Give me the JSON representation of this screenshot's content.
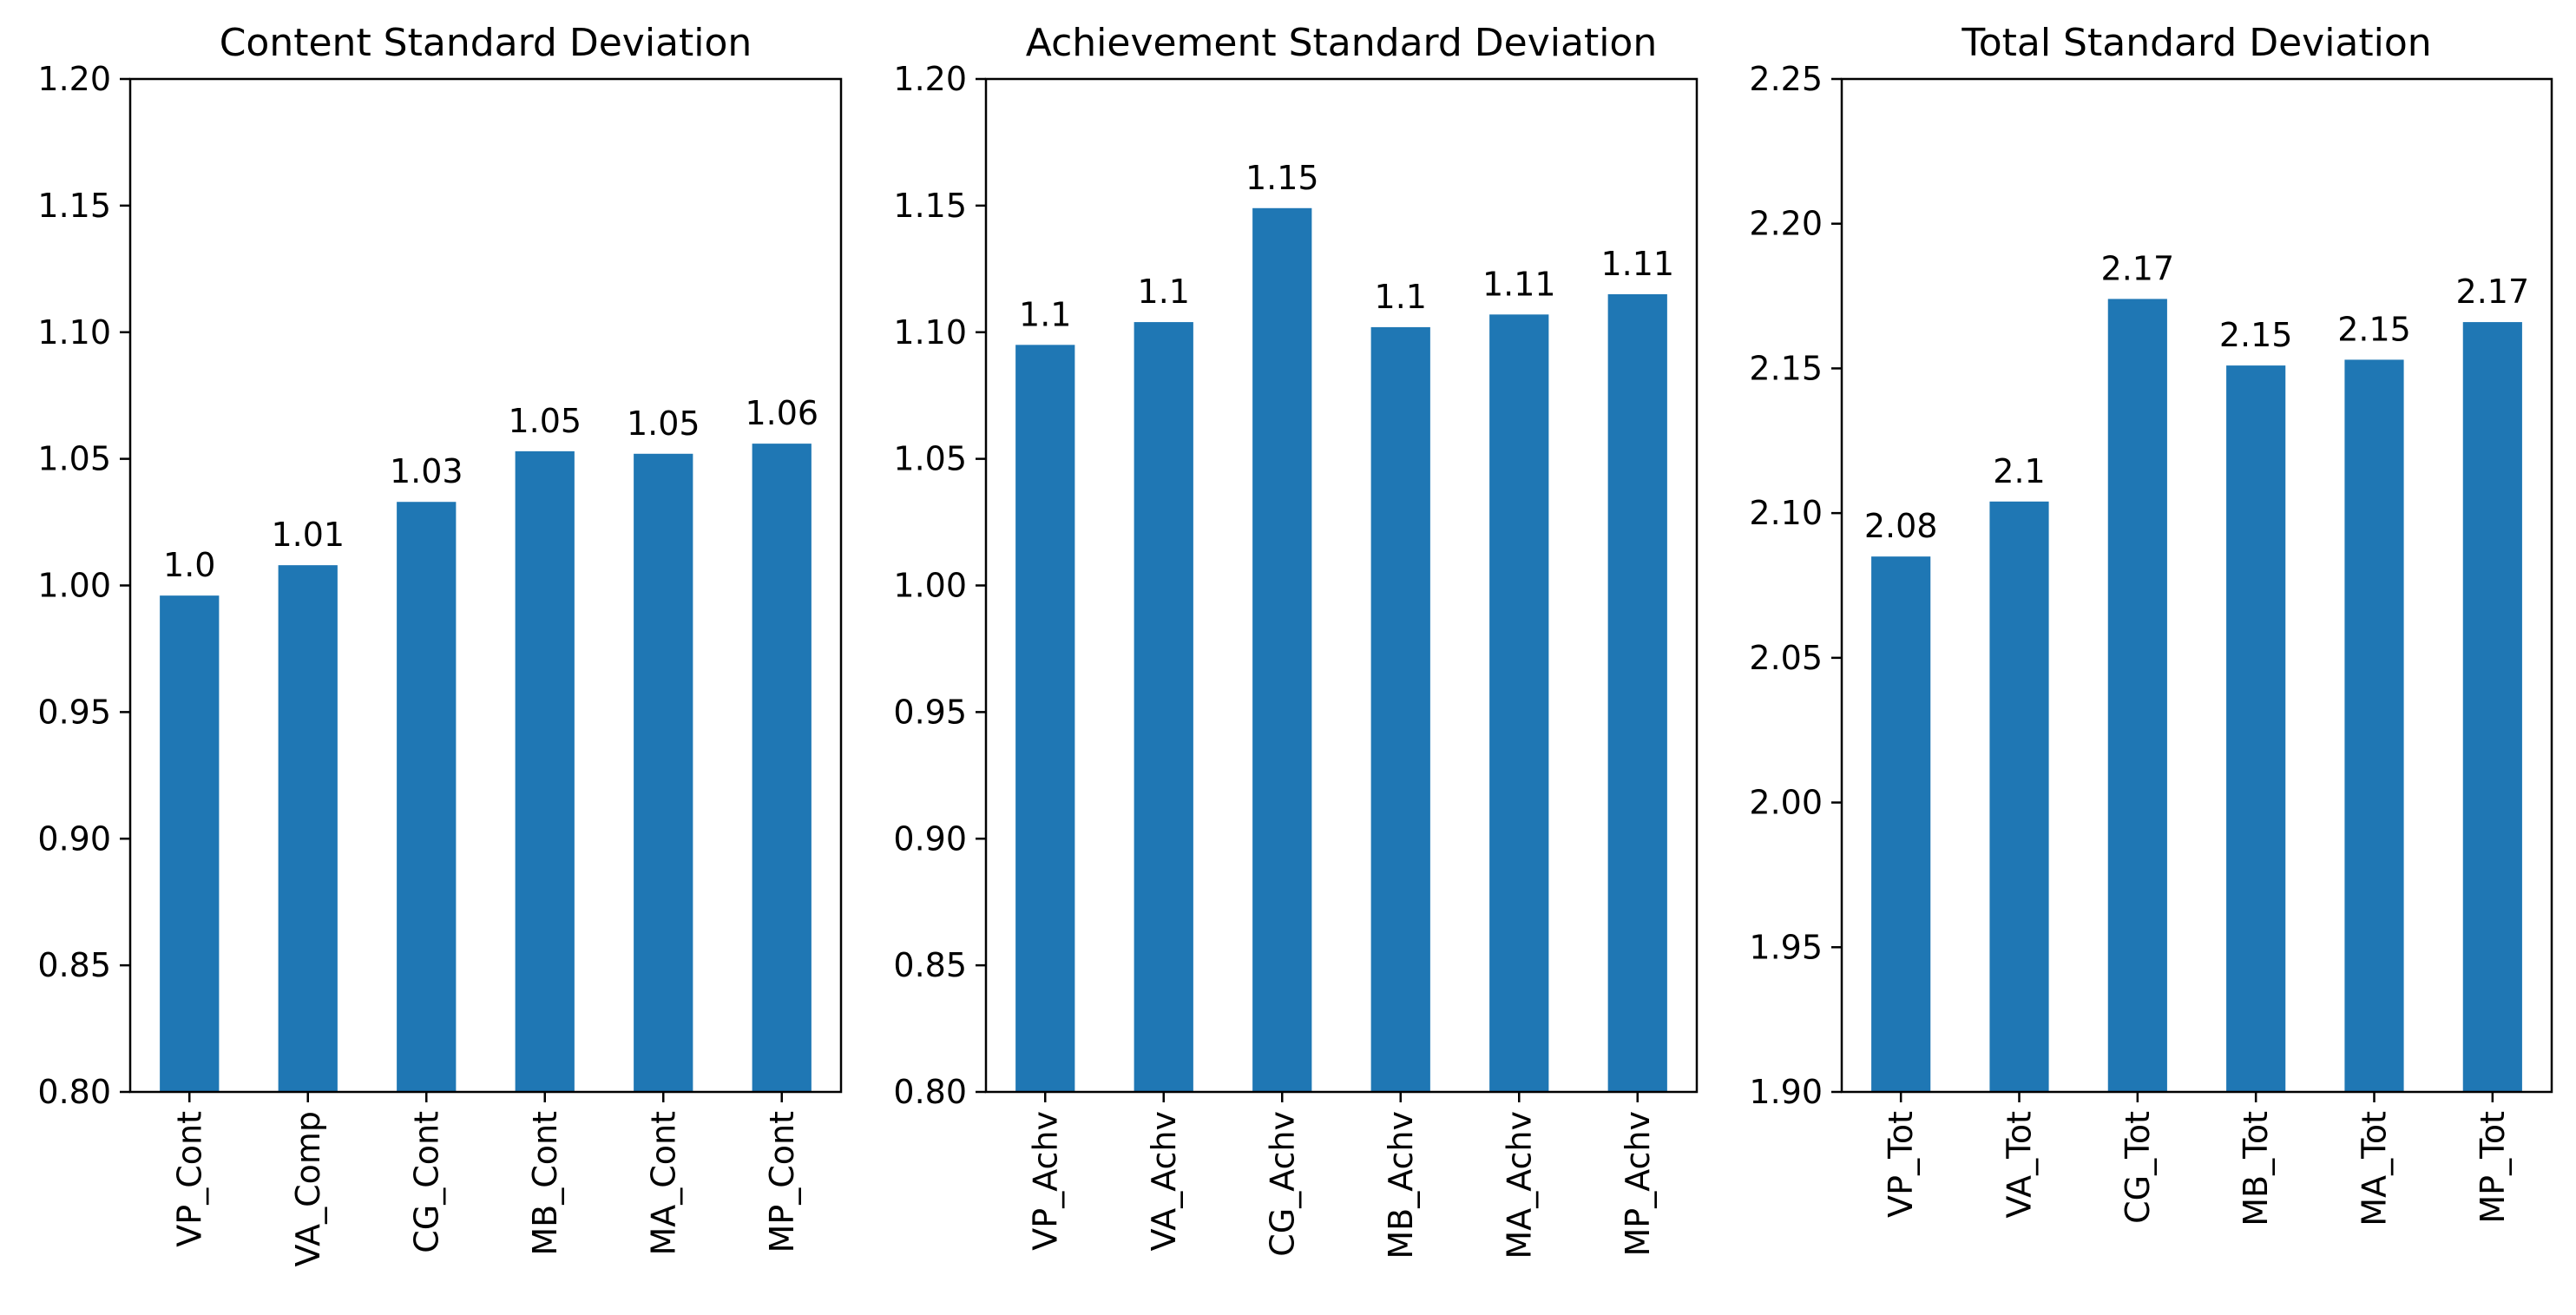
{
  "chart_data": [
    {
      "type": "bar",
      "title": "Content Standard Deviation",
      "categories": [
        "VP_Cont",
        "VA_Comp",
        "CG_Cont",
        "MB_Cont",
        "MA_Cont",
        "MP_Cont"
      ],
      "values": [
        0.996,
        1.008,
        1.033,
        1.053,
        1.052,
        1.056
      ],
      "data_labels": [
        "1.0",
        "1.01",
        "1.03",
        "1.05",
        "1.05",
        "1.06"
      ],
      "ylim": [
        0.8,
        1.2
      ],
      "yticks": [
        "0.80",
        "0.85",
        "0.90",
        "0.95",
        "1.00",
        "1.05",
        "1.10",
        "1.15",
        "1.20"
      ],
      "grid": false,
      "color": "#1f77b4"
    },
    {
      "type": "bar",
      "title": "Achievement Standard Deviation",
      "categories": [
        "VP_Achv",
        "VA_Achv",
        "CG_Achv",
        "MB_Achv",
        "MA_Achv",
        "MP_Achv"
      ],
      "values": [
        1.095,
        1.104,
        1.149,
        1.102,
        1.107,
        1.115
      ],
      "data_labels": [
        "1.1",
        "1.1",
        "1.15",
        "1.1",
        "1.11",
        "1.11"
      ],
      "ylim": [
        0.8,
        1.2
      ],
      "yticks": [
        "0.80",
        "0.85",
        "0.90",
        "0.95",
        "1.00",
        "1.05",
        "1.10",
        "1.15",
        "1.20"
      ],
      "grid": false,
      "color": "#1f77b4"
    },
    {
      "type": "bar",
      "title": "Total Standard Deviation",
      "categories": [
        "VP_Tot",
        "VA_Tot",
        "CG_Tot",
        "MB_Tot",
        "MA_Tot",
        "MP_Tot"
      ],
      "values": [
        2.085,
        2.104,
        2.174,
        2.151,
        2.153,
        2.166
      ],
      "data_labels": [
        "2.08",
        "2.1",
        "2.17",
        "2.15",
        "2.15",
        "2.17"
      ],
      "ylim": [
        1.9,
        2.25
      ],
      "yticks": [
        "1.90",
        "1.95",
        "2.00",
        "2.05",
        "2.10",
        "2.15",
        "2.20",
        "2.25"
      ],
      "grid": false,
      "color": "#1f77b4"
    }
  ]
}
